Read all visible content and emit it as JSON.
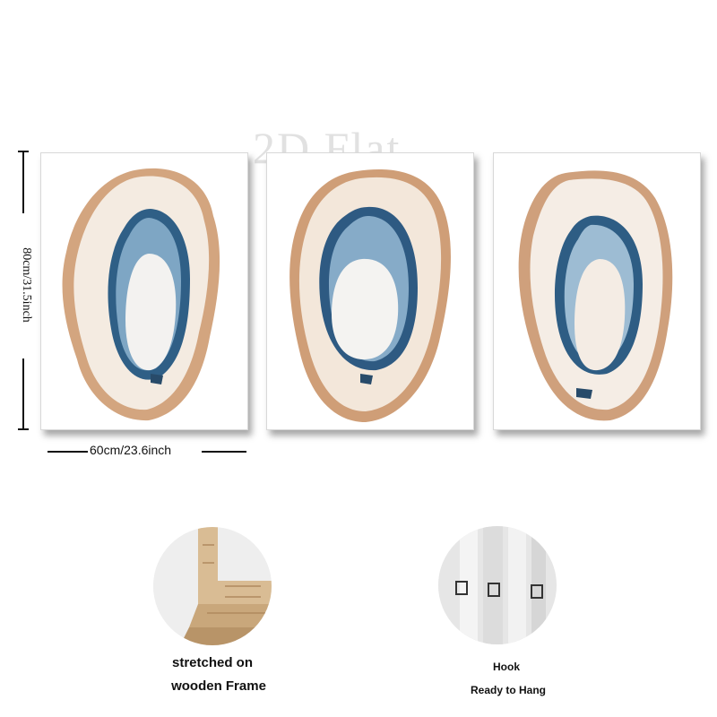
{
  "watermark": "2D Flat",
  "dimensions": {
    "height_label": "80cm/31.5inch",
    "width_label": "60cm/23.6inch"
  },
  "panels": [
    {
      "subject": "oyster-shell-painting"
    },
    {
      "subject": "oyster-shell-painting"
    },
    {
      "subject": "oyster-shell-painting"
    }
  ],
  "features": {
    "frame": {
      "line1": "stretched on",
      "line2": "wooden Frame"
    },
    "hook": {
      "line1": "Hook",
      "line2": "Ready to Hang"
    }
  },
  "colors": {
    "shell_tan": "#c99a74",
    "shell_cream": "#f3e6d8",
    "mantle_blue": "#2f5f86",
    "mantle_light": "#8fb3cf",
    "pearl": "#f2f1ef",
    "wood": "#d9bc94"
  }
}
